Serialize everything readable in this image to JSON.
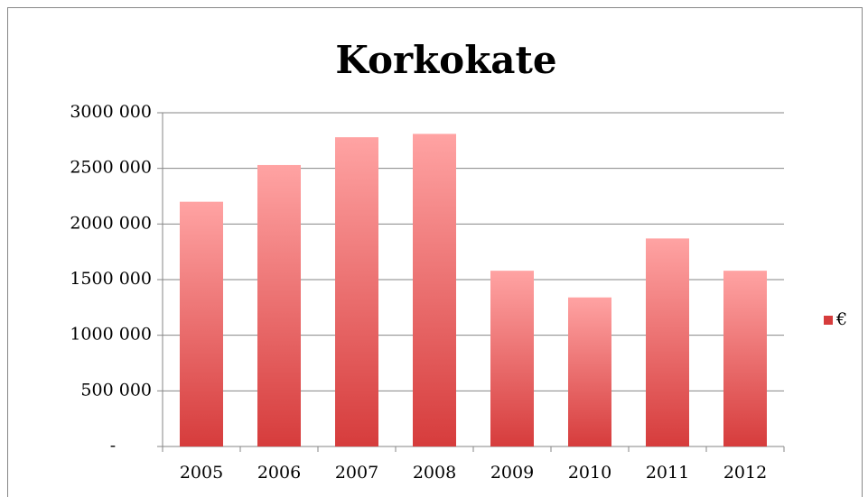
{
  "chart_data": {
    "type": "bar",
    "title": "Korkokate",
    "categories": [
      "2005",
      "2006",
      "2007",
      "2008",
      "2009",
      "2010",
      "2011",
      "2012"
    ],
    "series": [
      {
        "name": "€",
        "color": "#d63c3c",
        "values": [
          2200000,
          2530000,
          2780000,
          2810000,
          1580000,
          1340000,
          1870000,
          1580000
        ]
      }
    ],
    "ylim": [
      0,
      3000000
    ],
    "yticks": [
      {
        "value": 0,
        "label": "-"
      },
      {
        "value": 500000,
        "label": "500 000"
      },
      {
        "value": 1000000,
        "label": "1000 000"
      },
      {
        "value": 1500000,
        "label": "1500 000"
      },
      {
        "value": 2000000,
        "label": "2000 000"
      },
      {
        "value": 2500000,
        "label": "2500 000"
      },
      {
        "value": 3000000,
        "label": "3000 000"
      }
    ],
    "grid": true,
    "legend": "right"
  }
}
